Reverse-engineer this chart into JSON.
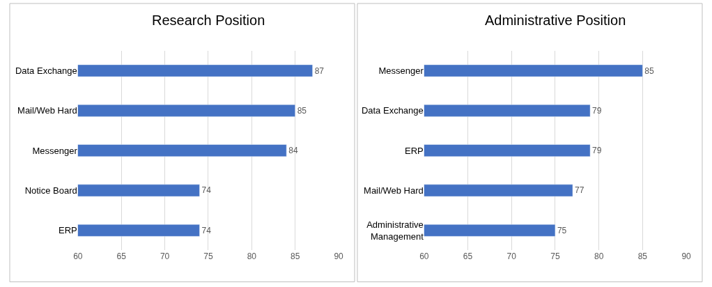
{
  "chart_data": [
    {
      "type": "bar",
      "orientation": "horizontal",
      "title": "Research Position",
      "categories": [
        "Data Exchange",
        "Mail/Web Hard",
        "Messenger",
        "Notice Board",
        "ERP"
      ],
      "values": [
        87,
        85,
        84,
        74,
        74
      ],
      "color": "#4472c4",
      "xlim": [
        60,
        90
      ],
      "xticks": [
        60,
        65,
        70,
        75,
        80,
        85,
        90
      ],
      "grid": "x",
      "data_labels": true
    },
    {
      "type": "bar",
      "orientation": "horizontal",
      "title": "Administrative Position",
      "categories": [
        "Messenger",
        "Data Exchange",
        "ERP",
        "Mail/Web Hard",
        "Administrative\nManagement"
      ],
      "values": [
        85,
        79,
        79,
        77,
        75
      ],
      "color": "#4472c4",
      "xlim": [
        60,
        90
      ],
      "xticks": [
        60,
        65,
        70,
        75,
        80,
        85,
        90
      ],
      "grid": "x",
      "data_labels": true
    }
  ]
}
